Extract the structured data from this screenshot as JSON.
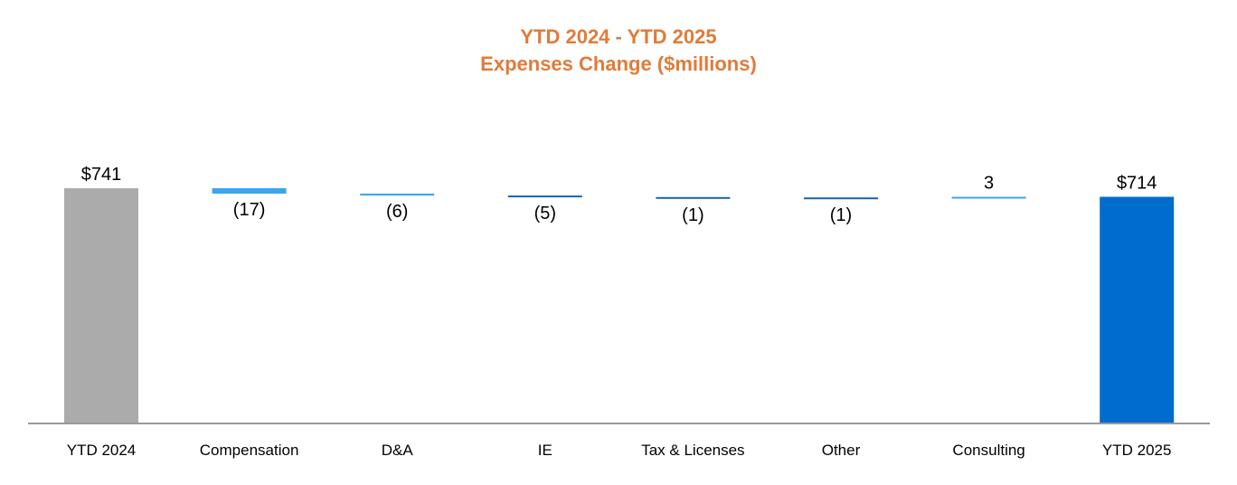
{
  "chart_data": {
    "type": "bar",
    "subtype": "waterfall",
    "title_line1": "YTD 2024 - YTD 2025",
    "title_line2": "Expenses Change ($millions)",
    "xlabel": "",
    "ylabel": "",
    "ylim": [
      0,
      741
    ],
    "grid": false,
    "legend": "none",
    "categories": [
      "YTD 2024",
      "Compensation",
      "D&A",
      "IE",
      "Tax & Licenses",
      "Other",
      "Consulting",
      "YTD 2025"
    ],
    "bars": [
      {
        "category": "YTD 2024",
        "kind": "total",
        "value": 741,
        "label": "$741"
      },
      {
        "category": "Compensation",
        "kind": "delta",
        "value": -17,
        "label": "(17)"
      },
      {
        "category": "D&A",
        "kind": "delta",
        "value": -6,
        "label": "(6)"
      },
      {
        "category": "IE",
        "kind": "delta",
        "value": -5,
        "label": "(5)"
      },
      {
        "category": "Tax & Licenses",
        "kind": "delta",
        "value": -1,
        "label": "(1)"
      },
      {
        "category": "Other",
        "kind": "delta",
        "value": -1,
        "label": "(1)"
      },
      {
        "category": "Consulting",
        "kind": "delta",
        "value": 3,
        "label": "3"
      },
      {
        "category": "YTD 2025",
        "kind": "total",
        "value": 714,
        "label": "$714"
      }
    ]
  },
  "colors": {
    "title": "#E07B39",
    "start_total": "#ABABAB",
    "end_total": "#006CCE",
    "delta_light": "#3DA5EE",
    "delta_dark": "#1566AE",
    "axis": "#9A9A9A"
  }
}
